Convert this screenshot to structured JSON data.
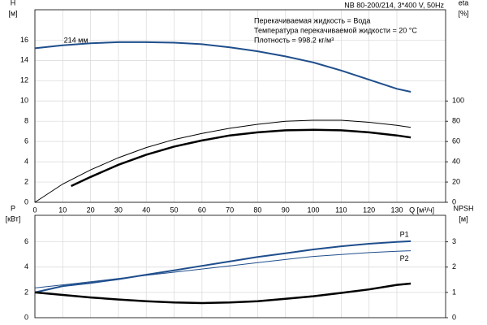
{
  "chart_data": [
    {
      "type": "line",
      "title": "NB 80-200/214, 3*400 V, 50Hz",
      "annotations": [
        "Перекачиваемая жидкость = Вода",
        "Температура перекачиваемой жидкости = 20 °C",
        "Плотность = 998.2 кг/м³"
      ],
      "ylabel": [
        "H",
        "[м]"
      ],
      "y2label": [
        "eta",
        "[%]"
      ],
      "xlabel": "Q [м³/ч]",
      "xlim": [
        0,
        147.5
      ],
      "xticks": [
        0,
        10,
        20,
        30,
        40,
        50,
        60,
        70,
        80,
        90,
        100,
        110,
        120,
        130
      ],
      "ylim": [
        0,
        19
      ],
      "yticks": [
        0,
        2,
        4,
        6,
        8,
        10,
        12,
        14,
        16
      ],
      "y2lim": [
        0,
        190
      ],
      "y2ticks": [
        0,
        20,
        40,
        60,
        80,
        100
      ],
      "grid": true,
      "series": [
        {
          "name": "214 мм",
          "color": "#1f4e8c",
          "linewidth": 2,
          "x": [
            0,
            10,
            20,
            30,
            40,
            50,
            60,
            70,
            80,
            90,
            100,
            110,
            120,
            130,
            135
          ],
          "values": [
            15.2,
            15.5,
            15.7,
            15.8,
            15.8,
            15.75,
            15.6,
            15.3,
            14.9,
            14.4,
            13.8,
            13.0,
            12.1,
            11.2,
            10.9
          ]
        },
        {
          "color": "#000000",
          "linewidth": 1,
          "axis": "y2",
          "x": [
            0,
            10,
            20,
            30,
            40,
            50,
            60,
            70,
            80,
            90,
            100,
            110,
            120,
            130,
            135
          ],
          "values": [
            0,
            18,
            32,
            44,
            54,
            62,
            68,
            73,
            77,
            80,
            81,
            81,
            79,
            76,
            74
          ]
        },
        {
          "color": "#000000",
          "linewidth": 2.5,
          "axis": "y2",
          "x": [
            13,
            20,
            30,
            40,
            50,
            60,
            70,
            80,
            90,
            100,
            110,
            120,
            130,
            135
          ],
          "values": [
            16,
            25,
            37,
            47,
            55,
            61,
            66,
            69,
            71,
            71.5,
            71,
            69,
            66,
            64
          ]
        }
      ]
    },
    {
      "type": "line",
      "ylabel": [
        "P",
        "[кВт]"
      ],
      "y2label": [
        "NPSH",
        "[м]"
      ],
      "xlim": [
        0,
        147.5
      ],
      "xticks": [
        0,
        10,
        20,
        30,
        40,
        50,
        60,
        70,
        80,
        90,
        100,
        110,
        120,
        130
      ],
      "xticklabels": false,
      "ylim": [
        0,
        8.1
      ],
      "yticks": [
        0,
        2,
        4,
        6
      ],
      "y2lim": [
        0,
        4.05
      ],
      "y2ticks": [
        0,
        1,
        2,
        3
      ],
      "grid": true,
      "series": [
        {
          "name": "P1",
          "color": "#1f4e8c",
          "linewidth": 2,
          "x": [
            0,
            10,
            20,
            30,
            40,
            50,
            60,
            70,
            80,
            90,
            100,
            110,
            120,
            130,
            135
          ],
          "values": [
            2.0,
            2.5,
            2.75,
            3.05,
            3.4,
            3.75,
            4.1,
            4.45,
            4.8,
            5.1,
            5.4,
            5.65,
            5.85,
            6.0,
            6.05
          ]
        },
        {
          "name": "P2",
          "color": "#1f4e8c",
          "linewidth": 1,
          "x": [
            0,
            10,
            20,
            30,
            40,
            50,
            60,
            70,
            80,
            90,
            100,
            110,
            120,
            130,
            135
          ],
          "values": [
            2.35,
            2.6,
            2.85,
            3.1,
            3.35,
            3.6,
            3.85,
            4.1,
            4.35,
            4.6,
            4.85,
            5.0,
            5.15,
            5.25,
            5.3
          ]
        },
        {
          "color": "#000000",
          "linewidth": 2.5,
          "axis": "y2",
          "x": [
            0,
            10,
            20,
            30,
            40,
            50,
            60,
            70,
            80,
            90,
            100,
            110,
            120,
            130,
            135
          ],
          "values": [
            1.0,
            0.9,
            0.8,
            0.72,
            0.65,
            0.6,
            0.58,
            0.6,
            0.65,
            0.75,
            0.85,
            0.98,
            1.12,
            1.3,
            1.35
          ]
        }
      ]
    }
  ]
}
